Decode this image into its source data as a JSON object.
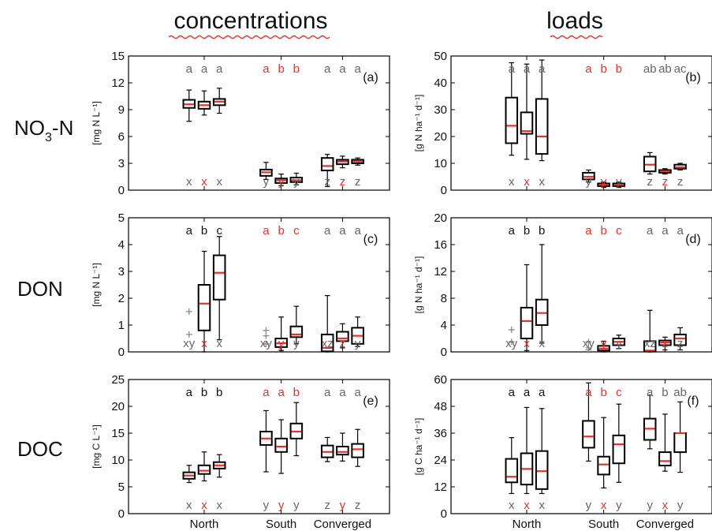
{
  "titles": {
    "left": "concentrations",
    "right": "loads"
  },
  "rows": [
    {
      "label_main": "NO",
      "label_sub": "3",
      "label_rest": "-N"
    },
    {
      "label_main": "DON",
      "label_sub": "",
      "label_rest": ""
    },
    {
      "label_main": "DOC",
      "label_sub": "",
      "label_rest": ""
    }
  ],
  "colors": {
    "black": "#111111",
    "gray": "#666666",
    "red": "#e8302a",
    "box": "#000000",
    "median": "#e8302a",
    "outlier": "#888888",
    "squiggle": "#e8302a"
  },
  "chart_data": [
    {
      "type": "box",
      "panel": "(a)",
      "ylabel": "[mg N L⁻¹]",
      "ylim": [
        0,
        15
      ],
      "yticks": [
        0,
        3,
        6,
        9,
        12,
        15
      ],
      "categories": [
        "North",
        "South",
        "Converged"
      ],
      "show_xticks": false,
      "top_letters": [
        [
          {
            "t": "a",
            "c": "gray"
          },
          {
            "t": "a",
            "c": "gray"
          },
          {
            "t": "a",
            "c": "gray"
          }
        ],
        [
          {
            "t": "a",
            "c": "red"
          },
          {
            "t": "b",
            "c": "red"
          },
          {
            "t": "b",
            "c": "red"
          }
        ],
        [
          {
            "t": "a",
            "c": "gray"
          },
          {
            "t": "a",
            "c": "gray"
          },
          {
            "t": "a",
            "c": "gray"
          }
        ]
      ],
      "bottom_letters": [
        [
          {
            "t": "x",
            "c": "gray"
          },
          {
            "t": "x",
            "c": "red"
          },
          {
            "t": "x",
            "c": "gray"
          }
        ],
        [
          {
            "t": "y",
            "c": "gray"
          },
          {
            "t": "y",
            "c": "red"
          },
          {
            "t": "y",
            "c": "gray"
          }
        ],
        [
          {
            "t": "z",
            "c": "gray"
          },
          {
            "t": "z",
            "c": "red"
          },
          {
            "t": "z",
            "c": "gray"
          }
        ]
      ],
      "boxes": [
        [
          [
            7.7,
            9.2,
            9.6,
            10.1,
            11.2
          ],
          [
            8.4,
            9.1,
            9.5,
            9.9,
            11.1
          ],
          [
            8.6,
            9.5,
            9.9,
            10.2,
            11.4
          ]
        ],
        [
          [
            1.2,
            1.6,
            2.0,
            2.3,
            3.1
          ],
          [
            0.5,
            0.8,
            1.1,
            1.3,
            1.8
          ],
          [
            0.6,
            0.9,
            1.1,
            1.4,
            1.9
          ]
        ],
        [
          [
            0.4,
            2.2,
            2.7,
            3.6,
            4.0
          ],
          [
            2.5,
            2.9,
            3.2,
            3.4,
            3.8
          ],
          [
            2.8,
            3.0,
            3.2,
            3.4,
            3.6
          ]
        ]
      ],
      "outliers": [
        [
          [],
          [],
          []
        ],
        [
          [],
          [],
          []
        ],
        [
          [],
          [],
          []
        ]
      ]
    },
    {
      "type": "box",
      "panel": "(b)",
      "ylabel": "[g N ha⁻¹ d⁻¹]",
      "ylim": [
        0,
        50
      ],
      "yticks": [
        0,
        10,
        20,
        30,
        40,
        50
      ],
      "categories": [
        "North",
        "South",
        "Converged"
      ],
      "show_xticks": false,
      "top_letters": [
        [
          {
            "t": "a",
            "c": "gray"
          },
          {
            "t": "a",
            "c": "gray"
          },
          {
            "t": "a",
            "c": "gray"
          }
        ],
        [
          {
            "t": "a",
            "c": "red"
          },
          {
            "t": "b",
            "c": "red"
          },
          {
            "t": "b",
            "c": "red"
          }
        ],
        [
          {
            "t": "ab",
            "c": "gray"
          },
          {
            "t": "ab",
            "c": "gray"
          },
          {
            "t": "ac",
            "c": "gray"
          }
        ]
      ],
      "bottom_letters": [
        [
          {
            "t": "x",
            "c": "gray"
          },
          {
            "t": "x",
            "c": "red"
          },
          {
            "t": "x",
            "c": "gray"
          }
        ],
        [
          {
            "t": "y",
            "c": "gray"
          },
          {
            "t": "y",
            "c": "red"
          },
          {
            "t": "y",
            "c": "gray"
          }
        ],
        [
          {
            "t": "z",
            "c": "gray"
          },
          {
            "t": "z",
            "c": "red"
          },
          {
            "t": "z",
            "c": "gray"
          }
        ]
      ],
      "boxes": [
        [
          [
            13,
            17.5,
            24,
            34.5,
            47.5
          ],
          [
            11.5,
            21,
            22,
            29,
            47
          ],
          [
            11,
            13.5,
            20,
            34,
            48.5
          ]
        ],
        [
          [
            3,
            4,
            5,
            6.5,
            7.5
          ],
          [
            1,
            1.5,
            2,
            2.5,
            3
          ],
          [
            1,
            1.5,
            2,
            2.5,
            3
          ]
        ],
        [
          [
            6,
            7,
            9.5,
            12.5,
            14
          ],
          [
            6,
            6.5,
            7,
            7.5,
            8
          ],
          [
            7.5,
            8,
            8.5,
            9.5,
            10
          ]
        ]
      ],
      "outliers": [
        [
          [],
          [],
          []
        ],
        [
          [],
          [],
          []
        ],
        [
          [],
          [],
          []
        ]
      ]
    },
    {
      "type": "box",
      "panel": "(c)",
      "ylabel": "[mg N L⁻¹]",
      "ylim": [
        0,
        5
      ],
      "yticks": [
        0,
        1,
        2,
        3,
        4,
        5
      ],
      "categories": [
        "North",
        "South",
        "Converged"
      ],
      "show_xticks": false,
      "top_letters": [
        [
          {
            "t": "a",
            "c": "black"
          },
          {
            "t": "b",
            "c": "black"
          },
          {
            "t": "c",
            "c": "black"
          }
        ],
        [
          {
            "t": "a",
            "c": "red"
          },
          {
            "t": "b",
            "c": "red"
          },
          {
            "t": "c",
            "c": "red"
          }
        ],
        [
          {
            "t": "a",
            "c": "gray"
          },
          {
            "t": "a",
            "c": "gray"
          },
          {
            "t": "a",
            "c": "gray"
          }
        ]
      ],
      "bottom_letters": [
        [
          {
            "t": "xy",
            "c": "gray"
          },
          {
            "t": "x",
            "c": "red"
          },
          {
            "t": "x",
            "c": "gray"
          }
        ],
        [
          {
            "t": "xy",
            "c": "gray"
          },
          {
            "t": "y",
            "c": "red"
          },
          {
            "t": "y",
            "c": "gray"
          }
        ],
        [
          {
            "t": "xz",
            "c": "gray"
          },
          {
            "t": "z",
            "c": "red"
          },
          {
            "t": "y",
            "c": "gray"
          }
        ]
      ],
      "boxes": [
        [
          null,
          [
            0,
            0.8,
            1.8,
            2.5,
            3.75
          ],
          [
            0.45,
            1.95,
            2.95,
            3.6,
            4.3
          ]
        ],
        [
          null,
          [
            0.05,
            0.18,
            0.32,
            0.5,
            1.3
          ],
          [
            0.3,
            0.55,
            0.65,
            0.95,
            1.7
          ]
        ],
        [
          [
            0,
            0.02,
            0.15,
            0.65,
            2.1
          ],
          [
            0.15,
            0.4,
            0.5,
            0.75,
            1.05
          ],
          [
            0.2,
            0.3,
            0.6,
            0.9,
            1.3
          ]
        ]
      ],
      "outliers": [
        [
          [
            1.5,
            0.65
          ],
          [],
          []
        ],
        [
          [
            0.8,
            0.6,
            0.3
          ],
          [],
          []
        ],
        [
          [],
          [],
          []
        ]
      ]
    },
    {
      "type": "box",
      "panel": "(d)",
      "ylabel": "[g N ha⁻¹ d⁻¹]",
      "ylim": [
        0,
        20
      ],
      "yticks": [
        0,
        4,
        8,
        12,
        16,
        20
      ],
      "categories": [
        "North",
        "South",
        "Converged"
      ],
      "show_xticks": false,
      "top_letters": [
        [
          {
            "t": "a",
            "c": "black"
          },
          {
            "t": "b",
            "c": "black"
          },
          {
            "t": "b",
            "c": "black"
          }
        ],
        [
          {
            "t": "a",
            "c": "red"
          },
          {
            "t": "b",
            "c": "red"
          },
          {
            "t": "c",
            "c": "red"
          }
        ],
        [
          {
            "t": "a",
            "c": "gray"
          },
          {
            "t": "a",
            "c": "gray"
          },
          {
            "t": "a",
            "c": "gray"
          }
        ]
      ],
      "bottom_letters": [
        [
          {
            "t": "xy",
            "c": "gray"
          },
          {
            "t": "x",
            "c": "red"
          },
          {
            "t": "x",
            "c": "gray"
          }
        ],
        [
          {
            "t": "xy",
            "c": "gray"
          },
          {
            "t": "y",
            "c": "red"
          },
          {
            "t": "y",
            "c": "gray"
          }
        ],
        [
          {
            "t": "xz",
            "c": "gray"
          },
          {
            "t": "z",
            "c": "red"
          },
          {
            "t": "z",
            "c": "gray"
          }
        ]
      ],
      "boxes": [
        [
          null,
          [
            0.2,
            2,
            4.6,
            6.6,
            13
          ],
          [
            1.3,
            4,
            5.8,
            7.8,
            16
          ]
        ],
        [
          null,
          [
            0,
            0.2,
            0.5,
            0.9,
            1.6
          ],
          [
            0.5,
            1,
            1.5,
            2,
            2.5
          ]
        ],
        [
          [
            0,
            0.05,
            0.2,
            1.6,
            6.2
          ],
          [
            0.3,
            1.0,
            1.4,
            1.7,
            2.2
          ],
          [
            0.3,
            1.0,
            2.0,
            2.6,
            3.6
          ]
        ]
      ],
      "outliers": [
        [
          [
            1.5,
            3.3
          ],
          [],
          []
        ],
        [
          [
            1.5,
            0.6,
            0.3
          ],
          [],
          []
        ],
        [
          [],
          [],
          []
        ]
      ]
    },
    {
      "type": "box",
      "panel": "(e)",
      "ylabel": "[mg C L⁻¹]",
      "ylim": [
        0,
        25
      ],
      "yticks": [
        0,
        5,
        10,
        15,
        20,
        25
      ],
      "categories": [
        "North",
        "South",
        "Converged"
      ],
      "show_xticks": true,
      "top_letters": [
        [
          {
            "t": "a",
            "c": "black"
          },
          {
            "t": "b",
            "c": "black"
          },
          {
            "t": "b",
            "c": "black"
          }
        ],
        [
          {
            "t": "a",
            "c": "red"
          },
          {
            "t": "a",
            "c": "red"
          },
          {
            "t": "b",
            "c": "red"
          }
        ],
        [
          {
            "t": "a",
            "c": "gray"
          },
          {
            "t": "a",
            "c": "gray"
          },
          {
            "t": "a",
            "c": "gray"
          }
        ]
      ],
      "bottom_letters": [
        [
          {
            "t": "x",
            "c": "gray"
          },
          {
            "t": "x",
            "c": "red"
          },
          {
            "t": "x",
            "c": "gray"
          }
        ],
        [
          {
            "t": "y",
            "c": "gray"
          },
          {
            "t": "y",
            "c": "red"
          },
          {
            "t": "y",
            "c": "gray"
          }
        ],
        [
          {
            "t": "z",
            "c": "gray"
          },
          {
            "t": "y",
            "c": "red"
          },
          {
            "t": "z",
            "c": "gray"
          }
        ]
      ],
      "boxes": [
        [
          [
            5.8,
            6.5,
            7.1,
            7.7,
            9
          ],
          [
            6.1,
            7.4,
            8.0,
            9.0,
            11.5
          ],
          [
            6.8,
            8.4,
            9.0,
            9.6,
            11
          ]
        ],
        [
          [
            7.8,
            12.8,
            14.0,
            15.3,
            19.2
          ],
          [
            7.5,
            11.5,
            12.5,
            14.0,
            17.5
          ],
          [
            10.8,
            14.0,
            15.3,
            16.8,
            20.7
          ]
        ],
        [
          [
            9.7,
            10.5,
            11.5,
            12.7,
            14.2
          ],
          [
            9.8,
            11.0,
            11.5,
            12.5,
            15.0
          ],
          [
            8.8,
            10.5,
            12.0,
            13.0,
            15.7
          ]
        ]
      ],
      "outliers": [
        [
          [],
          [],
          []
        ],
        [
          [],
          [],
          []
        ],
        [
          [],
          [],
          []
        ]
      ]
    },
    {
      "type": "box",
      "panel": "(f)",
      "ylabel": "[g C ha⁻¹ d⁻¹]",
      "ylim": [
        0,
        60
      ],
      "yticks": [
        0,
        12,
        24,
        36,
        48,
        60
      ],
      "categories": [
        "North",
        "South",
        "Converged"
      ],
      "show_xticks": true,
      "top_letters": [
        [
          {
            "t": "a",
            "c": "black"
          },
          {
            "t": "a",
            "c": "black"
          },
          {
            "t": "a",
            "c": "black"
          }
        ],
        [
          {
            "t": "a",
            "c": "red"
          },
          {
            "t": "b",
            "c": "red"
          },
          {
            "t": "c",
            "c": "red"
          }
        ],
        [
          {
            "t": "a",
            "c": "gray"
          },
          {
            "t": "b",
            "c": "gray"
          },
          {
            "t": "ab",
            "c": "gray"
          }
        ]
      ],
      "bottom_letters": [
        [
          {
            "t": "x",
            "c": "gray"
          },
          {
            "t": "x",
            "c": "red"
          },
          {
            "t": "x",
            "c": "gray"
          }
        ],
        [
          {
            "t": "y",
            "c": "gray"
          },
          {
            "t": "x",
            "c": "red"
          },
          {
            "t": "y",
            "c": "gray"
          }
        ],
        [
          {
            "t": "y",
            "c": "gray"
          },
          {
            "t": "x",
            "c": "red"
          },
          {
            "t": "y",
            "c": "gray"
          }
        ]
      ],
      "boxes": [
        [
          [
            9,
            14,
            16.5,
            24.5,
            34
          ],
          [
            9,
            13,
            20,
            27,
            47.5
          ],
          [
            9,
            11,
            19,
            28,
            47
          ]
        ],
        [
          [
            23.5,
            29.5,
            34.5,
            41.5,
            58.5
          ],
          [
            11.5,
            17.5,
            22,
            25.5,
            43
          ],
          [
            14,
            22.5,
            31,
            35,
            49
          ]
        ],
        [
          [
            29,
            33,
            38,
            42.5,
            53
          ],
          [
            19,
            21.5,
            23.5,
            27.5,
            44.5
          ],
          [
            18.5,
            27.5,
            36,
            36,
            50
          ]
        ]
      ],
      "outliers": [
        [
          [],
          [],
          []
        ],
        [
          [],
          [],
          []
        ],
        [
          [],
          [],
          []
        ]
      ]
    }
  ]
}
